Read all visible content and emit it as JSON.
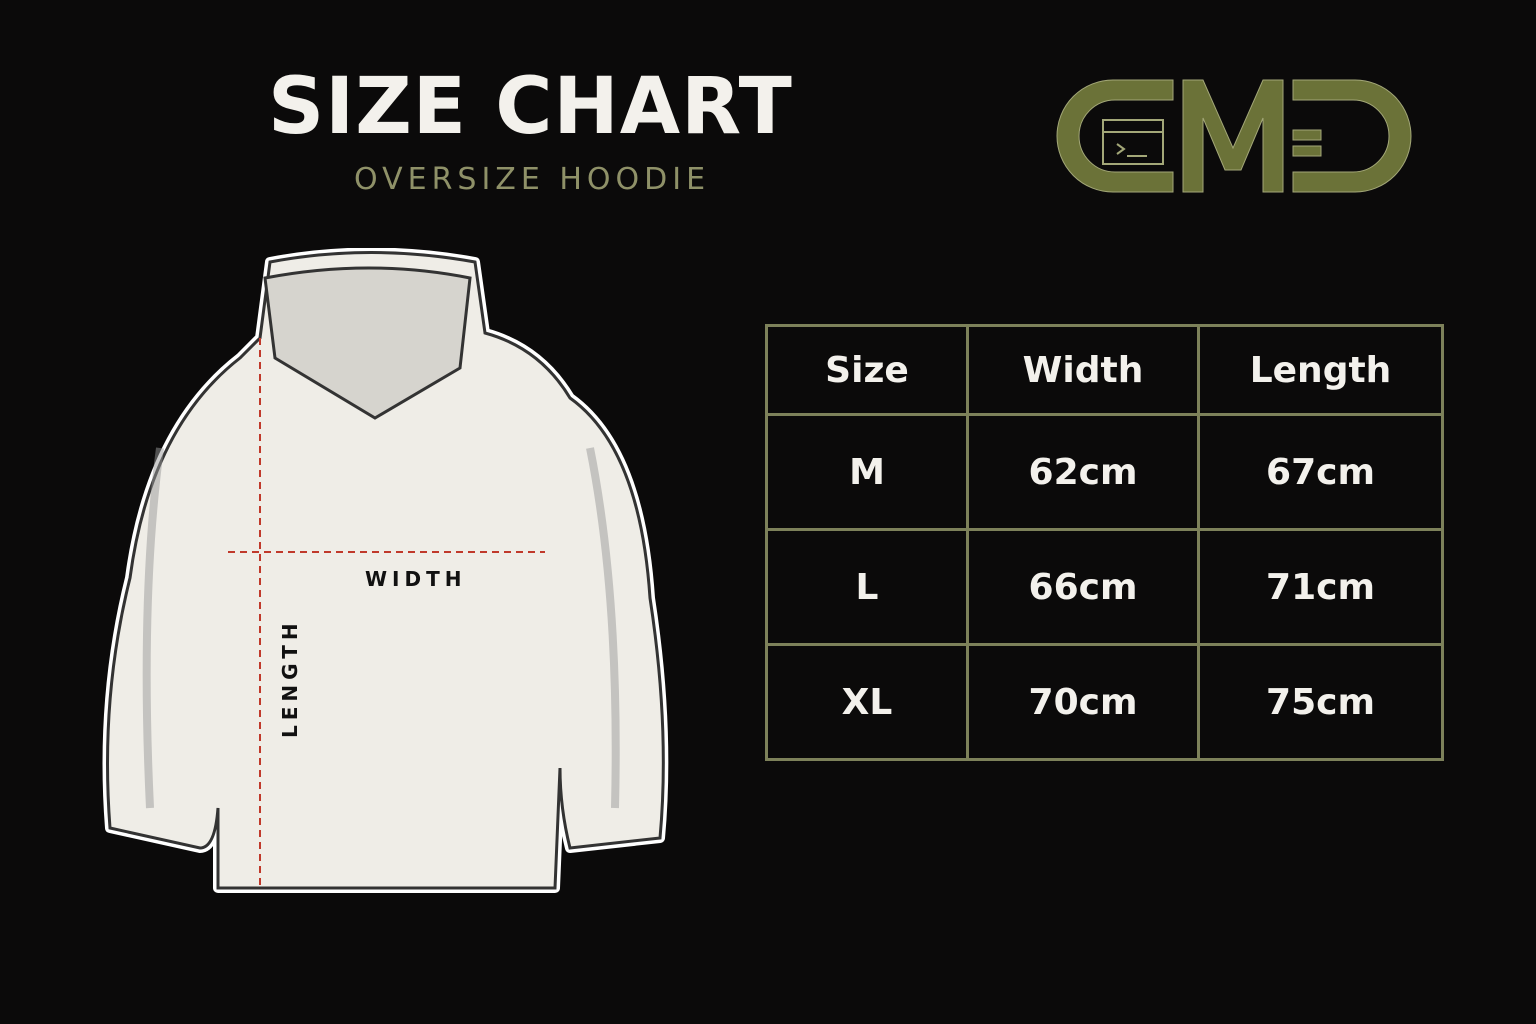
{
  "header": {
    "title": "SIZE CHART",
    "subtitle": "OVERSIZE HOODIE"
  },
  "logo": {
    "text": "CMD",
    "color": "#6b7238"
  },
  "colors": {
    "background": "#0b0a0a",
    "accent": "#7d815a",
    "measure_line": "#c0392b"
  },
  "illustration": {
    "width_label": "WIDTH",
    "length_label": "LENGTH"
  },
  "table": {
    "headers": [
      "Size",
      "Width",
      "Length"
    ],
    "rows": [
      [
        "M",
        "62cm",
        "67cm"
      ],
      [
        "L",
        "66cm",
        "71cm"
      ],
      [
        "XL",
        "70cm",
        "75cm"
      ]
    ]
  }
}
